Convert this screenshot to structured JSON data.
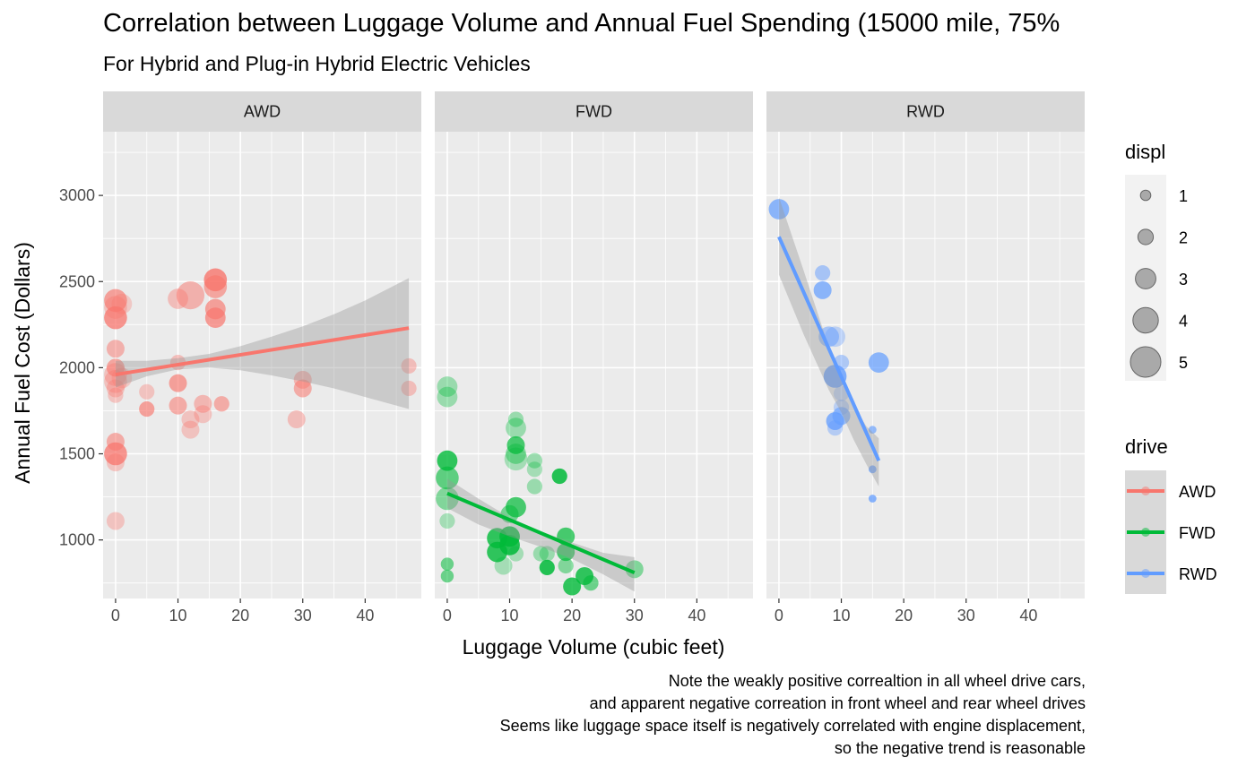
{
  "chart_data": {
    "type": "scatter",
    "title": "Correlation between Luggage Volume and Annual Fuel Spending (15000 mile, 75%",
    "subtitle": "For Hybrid and Plug-in Hybrid Electric Vehicles",
    "xlabel": "Luggage Volume (cubic feet)",
    "ylabel": "Annual Fuel Cost (Dollars)",
    "xlim": [
      -2,
      49
    ],
    "ylim": [
      660,
      3370
    ],
    "x_ticks": [
      0,
      10,
      20,
      30,
      40
    ],
    "y_ticks": [
      1000,
      1500,
      2000,
      2500,
      3000
    ],
    "grid": true,
    "caption": [
      "Note the weakly positive correaltion in all wheel drive cars,",
      "and apparent negative correation in front wheel and rear wheel drives",
      "Seems like luggage space itself is negatively correlated with engine displacement,",
      "so the negative trend is reasonable"
    ],
    "legend_size": {
      "title": "displ",
      "entries": [
        {
          "label": "1",
          "value": 1
        },
        {
          "label": "2",
          "value": 2
        },
        {
          "label": "3",
          "value": 3
        },
        {
          "label": "4",
          "value": 4
        },
        {
          "label": "5",
          "value": 5
        }
      ]
    },
    "legend_color": {
      "title": "drive",
      "entries": [
        {
          "label": "AWD",
          "color": "#F8766D"
        },
        {
          "label": "FWD",
          "color": "#00BA38"
        },
        {
          "label": "RWD",
          "color": "#619CFF"
        }
      ]
    },
    "facets": [
      {
        "label": "AWD",
        "color": "#F8766D",
        "trend": {
          "x": [
            0,
            47
          ],
          "y": [
            1960,
            2230
          ]
        },
        "band": {
          "x": [
            0,
            5,
            10,
            15,
            20,
            25,
            30,
            35,
            40,
            47
          ],
          "lower": [
            1885,
            1950,
            1990,
            2000,
            1985,
            1955,
            1920,
            1880,
            1830,
            1760
          ],
          "upper": [
            2040,
            2040,
            2055,
            2080,
            2125,
            2180,
            2240,
            2310,
            2390,
            2520
          ]
        },
        "points": [
          {
            "x": 0,
            "y": 2390,
            "displ": 3.5,
            "alpha": 0.65
          },
          {
            "x": 0,
            "y": 2350,
            "displ": 3.5,
            "alpha": 0.35
          },
          {
            "x": 0,
            "y": 2290,
            "displ": 3.5,
            "alpha": 0.75
          },
          {
            "x": 0,
            "y": 2110,
            "displ": 2.5,
            "alpha": 0.5
          },
          {
            "x": 0,
            "y": 2000,
            "displ": 2.5,
            "alpha": 0.6
          },
          {
            "x": 0,
            "y": 1960,
            "displ": 3.5,
            "alpha": 0.35
          },
          {
            "x": 0,
            "y": 1920,
            "displ": 3.5,
            "alpha": 0.35
          },
          {
            "x": 0,
            "y": 1880,
            "displ": 2.5,
            "alpha": 0.35
          },
          {
            "x": 0,
            "y": 1840,
            "displ": 2.0,
            "alpha": 0.35
          },
          {
            "x": 0,
            "y": 1570,
            "displ": 2.5,
            "alpha": 0.55
          },
          {
            "x": 0,
            "y": 1500,
            "displ": 3.5,
            "alpha": 0.75
          },
          {
            "x": 0,
            "y": 1450,
            "displ": 2.5,
            "alpha": 0.35
          },
          {
            "x": 0,
            "y": 1110,
            "displ": 2.5,
            "alpha": 0.35
          },
          {
            "x": 1,
            "y": 2370,
            "displ": 3.0,
            "alpha": 0.3
          },
          {
            "x": 1,
            "y": 1940,
            "displ": 3.0,
            "alpha": 0.3
          },
          {
            "x": 5,
            "y": 1860,
            "displ": 2.0,
            "alpha": 0.35
          },
          {
            "x": 5,
            "y": 1760,
            "displ": 2.0,
            "alpha": 0.65
          },
          {
            "x": 10,
            "y": 2400,
            "displ": 3.0,
            "alpha": 0.4
          },
          {
            "x": 10,
            "y": 2030,
            "displ": 2.0,
            "alpha": 0.4
          },
          {
            "x": 10,
            "y": 1910,
            "displ": 2.5,
            "alpha": 0.65
          },
          {
            "x": 10,
            "y": 1780,
            "displ": 2.5,
            "alpha": 0.55
          },
          {
            "x": 12,
            "y": 2420,
            "displ": 4.5,
            "alpha": 0.5
          },
          {
            "x": 12,
            "y": 1700,
            "displ": 2.5,
            "alpha": 0.35
          },
          {
            "x": 12,
            "y": 1640,
            "displ": 2.5,
            "alpha": 0.35
          },
          {
            "x": 14,
            "y": 1790,
            "displ": 2.5,
            "alpha": 0.45
          },
          {
            "x": 14,
            "y": 1730,
            "displ": 2.5,
            "alpha": 0.35
          },
          {
            "x": 16,
            "y": 2510,
            "displ": 3.5,
            "alpha": 0.8
          },
          {
            "x": 16,
            "y": 2470,
            "displ": 3.5,
            "alpha": 0.6
          },
          {
            "x": 16,
            "y": 2340,
            "displ": 3.0,
            "alpha": 0.65
          },
          {
            "x": 16,
            "y": 2290,
            "displ": 3.0,
            "alpha": 0.7
          },
          {
            "x": 17,
            "y": 1790,
            "displ": 2.0,
            "alpha": 0.55
          },
          {
            "x": 29,
            "y": 1700,
            "displ": 2.5,
            "alpha": 0.4
          },
          {
            "x": 30,
            "y": 1930,
            "displ": 2.5,
            "alpha": 0.45
          },
          {
            "x": 30,
            "y": 1880,
            "displ": 2.5,
            "alpha": 0.55
          },
          {
            "x": 47,
            "y": 2010,
            "displ": 2.0,
            "alpha": 0.4
          },
          {
            "x": 47,
            "y": 1880,
            "displ": 2.0,
            "alpha": 0.4
          }
        ]
      },
      {
        "label": "FWD",
        "color": "#00BA38",
        "trend": {
          "x": [
            0,
            30
          ],
          "y": [
            1270,
            810
          ]
        },
        "band": {
          "x": [
            0,
            5,
            10,
            15,
            20,
            25,
            30
          ],
          "lower": [
            1185,
            1090,
            1020,
            960,
            890,
            800,
            700
          ],
          "upper": [
            1355,
            1240,
            1130,
            1050,
            985,
            925,
            900
          ]
        },
        "points": [
          {
            "x": 0,
            "y": 1890,
            "displ": 3.0,
            "alpha": 0.35
          },
          {
            "x": 0,
            "y": 1830,
            "displ": 3.0,
            "alpha": 0.35
          },
          {
            "x": 0,
            "y": 1460,
            "displ": 3.0,
            "alpha": 0.8
          },
          {
            "x": 0,
            "y": 1360,
            "displ": 3.5,
            "alpha": 0.6
          },
          {
            "x": 0,
            "y": 1240,
            "displ": 3.5,
            "alpha": 0.45
          },
          {
            "x": 0,
            "y": 1110,
            "displ": 2.0,
            "alpha": 0.3
          },
          {
            "x": 0,
            "y": 860,
            "displ": 1.5,
            "alpha": 0.55
          },
          {
            "x": 0,
            "y": 790,
            "displ": 1.5,
            "alpha": 0.55
          },
          {
            "x": 8,
            "y": 1010,
            "displ": 3.0,
            "alpha": 0.8
          },
          {
            "x": 8,
            "y": 930,
            "displ": 3.0,
            "alpha": 0.8
          },
          {
            "x": 9,
            "y": 850,
            "displ": 2.5,
            "alpha": 0.3
          },
          {
            "x": 10,
            "y": 1150,
            "displ": 2.5,
            "alpha": 0.5
          },
          {
            "x": 10,
            "y": 1020,
            "displ": 3.0,
            "alpha": 0.85
          },
          {
            "x": 10,
            "y": 970,
            "displ": 3.0,
            "alpha": 0.85
          },
          {
            "x": 11,
            "y": 1700,
            "displ": 2.0,
            "alpha": 0.35
          },
          {
            "x": 11,
            "y": 1650,
            "displ": 3.0,
            "alpha": 0.35
          },
          {
            "x": 11,
            "y": 1550,
            "displ": 2.5,
            "alpha": 0.7
          },
          {
            "x": 11,
            "y": 1500,
            "displ": 3.0,
            "alpha": 0.4
          },
          {
            "x": 11,
            "y": 1470,
            "displ": 3.5,
            "alpha": 0.3
          },
          {
            "x": 11,
            "y": 1190,
            "displ": 3.0,
            "alpha": 0.7
          },
          {
            "x": 11,
            "y": 920,
            "displ": 2.0,
            "alpha": 0.3
          },
          {
            "x": 14,
            "y": 1460,
            "displ": 2.0,
            "alpha": 0.35
          },
          {
            "x": 14,
            "y": 1410,
            "displ": 2.0,
            "alpha": 0.3
          },
          {
            "x": 14,
            "y": 1310,
            "displ": 2.0,
            "alpha": 0.35
          },
          {
            "x": 15,
            "y": 920,
            "displ": 2.0,
            "alpha": 0.35
          },
          {
            "x": 16,
            "y": 920,
            "displ": 2.0,
            "alpha": 0.35
          },
          {
            "x": 16,
            "y": 840,
            "displ": 2.0,
            "alpha": 0.85
          },
          {
            "x": 18,
            "y": 1370,
            "displ": 2.0,
            "alpha": 0.85
          },
          {
            "x": 19,
            "y": 1020,
            "displ": 2.5,
            "alpha": 0.7
          },
          {
            "x": 19,
            "y": 930,
            "displ": 2.5,
            "alpha": 0.7
          },
          {
            "x": 19,
            "y": 850,
            "displ": 2.0,
            "alpha": 0.45
          },
          {
            "x": 20,
            "y": 730,
            "displ": 2.5,
            "alpha": 0.8
          },
          {
            "x": 22,
            "y": 790,
            "displ": 2.5,
            "alpha": 0.8
          },
          {
            "x": 23,
            "y": 750,
            "displ": 2.0,
            "alpha": 0.55
          },
          {
            "x": 30,
            "y": 830,
            "displ": 2.5,
            "alpha": 0.45
          }
        ]
      },
      {
        "label": "RWD",
        "color": "#619CFF",
        "trend": {
          "x": [
            0,
            16
          ],
          "y": [
            2760,
            1460
          ]
        },
        "band": {
          "x": [
            0,
            4,
            8,
            10,
            12,
            14,
            16
          ],
          "lower": [
            2540,
            2190,
            1870,
            1740,
            1580,
            1440,
            1310
          ],
          "upper": [
            2990,
            2560,
            2120,
            1930,
            1780,
            1660,
            1590
          ]
        },
        "points": [
          {
            "x": 0,
            "y": 2920,
            "displ": 3.0,
            "alpha": 0.7
          },
          {
            "x": 7,
            "y": 2550,
            "displ": 2.0,
            "alpha": 0.5
          },
          {
            "x": 7,
            "y": 2450,
            "displ": 2.5,
            "alpha": 0.7
          },
          {
            "x": 8,
            "y": 2180,
            "displ": 3.0,
            "alpha": 0.5
          },
          {
            "x": 9,
            "y": 2180,
            "displ": 3.0,
            "alpha": 0.35
          },
          {
            "x": 9,
            "y": 1950,
            "displ": 3.5,
            "alpha": 0.8
          },
          {
            "x": 10,
            "y": 2030,
            "displ": 2.0,
            "alpha": 0.45
          },
          {
            "x": 10,
            "y": 1850,
            "displ": 2.0,
            "alpha": 0.3
          },
          {
            "x": 10,
            "y": 1770,
            "displ": 2.0,
            "alpha": 0.35
          },
          {
            "x": 9,
            "y": 1690,
            "displ": 2.5,
            "alpha": 0.75
          },
          {
            "x": 9,
            "y": 1650,
            "displ": 2.0,
            "alpha": 0.4
          },
          {
            "x": 10,
            "y": 1720,
            "displ": 2.5,
            "alpha": 0.6
          },
          {
            "x": 16,
            "y": 2030,
            "displ": 3.0,
            "alpha": 0.7
          },
          {
            "x": 15,
            "y": 1640,
            "displ": 0.5,
            "alpha": 0.65
          },
          {
            "x": 15,
            "y": 1410,
            "displ": 0.5,
            "alpha": 0.75
          },
          {
            "x": 15,
            "y": 1240,
            "displ": 0.5,
            "alpha": 0.75
          }
        ]
      }
    ]
  }
}
